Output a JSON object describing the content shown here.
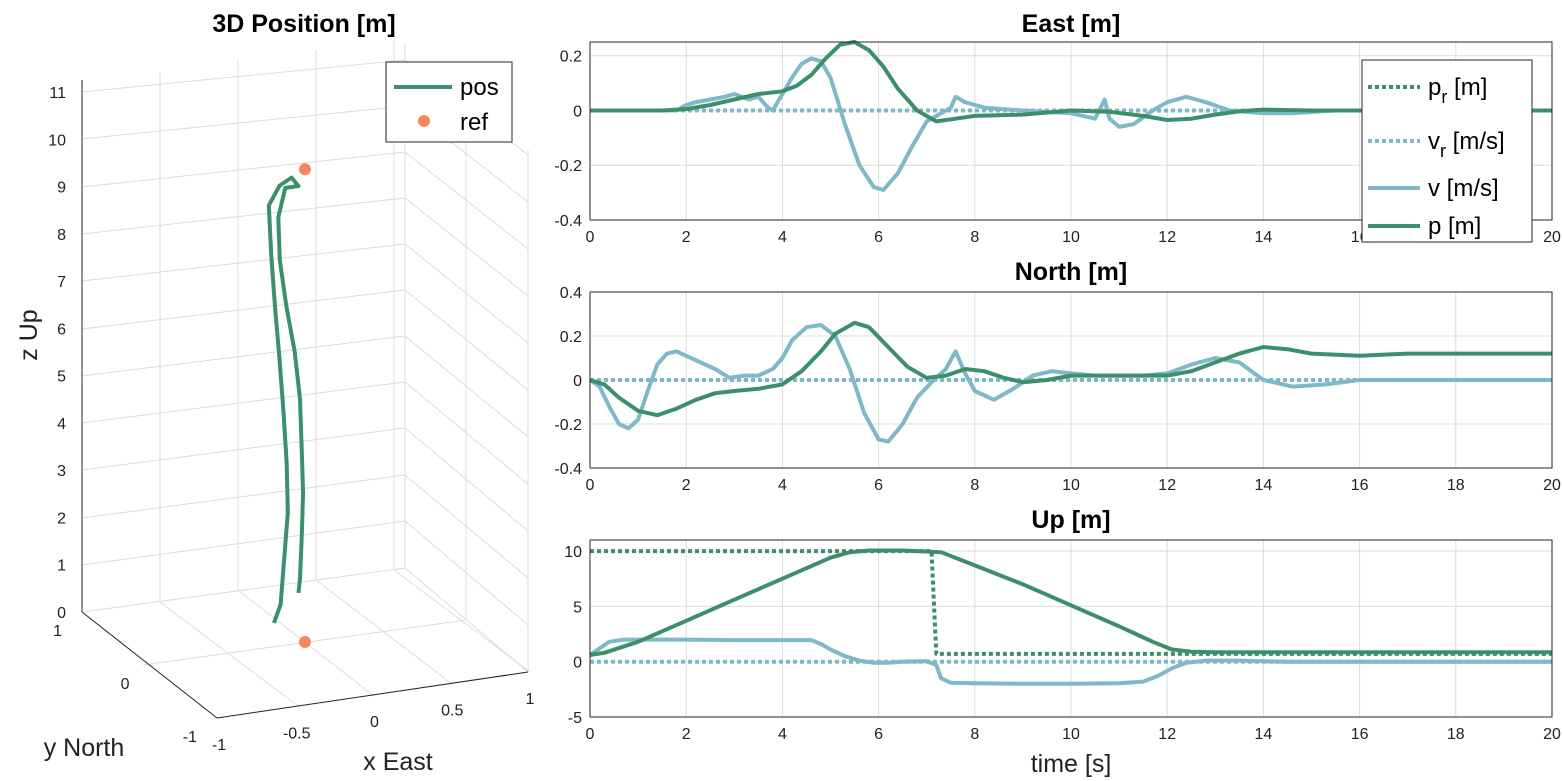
{
  "colors": {
    "p": "#3d8f6b",
    "v": "#7fb8c8",
    "ref": "#f5875f"
  },
  "chart_data": [
    {
      "id": "pos3d",
      "type": "line",
      "title": "3D Position [m]",
      "xlabel": "x East",
      "ylabel": "y North",
      "zlabel": "z Up",
      "xlim": [
        -1,
        1
      ],
      "ylim": [
        -1,
        1
      ],
      "zlim": [
        0,
        11
      ],
      "xticks": [
        "-1",
        "-0.5",
        "0",
        "0.5",
        "1"
      ],
      "yticks": [
        "-1",
        "0",
        "1"
      ],
      "zticks": [
        "0",
        "1",
        "2",
        "3",
        "4",
        "5",
        "6",
        "7",
        "8",
        "9",
        "10",
        "11"
      ],
      "grid": true,
      "legend": {
        "position": "top-right",
        "entries": [
          "pos",
          "ref"
        ]
      },
      "series": [
        {
          "name": "pos",
          "style": "solid",
          "x": [
            -0.2,
            -0.2,
            -0.19,
            -0.18,
            -0.17,
            -0.16,
            -0.15,
            -0.14,
            -0.13,
            -0.12,
            -0.12,
            -0.13,
            -0.15,
            -0.17,
            -0.15,
            -0.11,
            -0.06,
            -0.01,
            0.02,
            0.03,
            0.04,
            0.03,
            0.02,
            0.01
          ],
          "y": [
            0.0,
            -0.1,
            -0.13,
            -0.16,
            -0.12,
            -0.05,
            0.03,
            0.12,
            0.2,
            0.26,
            0.1,
            -0.1,
            -0.25,
            -0.1,
            0.05,
            0.12,
            0.14,
            0.13,
            0.12,
            0.12,
            0.12,
            0.12,
            0.12,
            0.12
          ],
          "z": [
            0.5,
            1.0,
            2.0,
            3.0,
            4.0,
            5.0,
            6.0,
            7.0,
            8.0,
            9.0,
            9.6,
            10.0,
            10.0,
            9.8,
            9.0,
            8.0,
            7.0,
            6.0,
            5.0,
            4.0,
            3.0,
            2.0,
            1.2,
            0.9
          ]
        },
        {
          "name": "ref",
          "style": "markers",
          "x": [
            0,
            0
          ],
          "y": [
            0,
            0
          ],
          "z": [
            0,
            10
          ]
        }
      ]
    },
    {
      "id": "east",
      "type": "line",
      "title": "East [m]",
      "xlabel": "",
      "ylabel": "",
      "xlim": [
        0,
        20
      ],
      "ylim": [
        -0.4,
        0.25
      ],
      "xticks": [
        "0",
        "2",
        "4",
        "6",
        "8",
        "10",
        "12",
        "14",
        "16",
        "18",
        "20"
      ],
      "yticks": [
        "-0.4",
        "-0.2",
        "0",
        "0.2"
      ],
      "ytick_values": [
        -0.4,
        -0.2,
        0,
        0.2
      ],
      "grid": true,
      "legend": {
        "position": "top-right",
        "entries": [
          "p_r [m]",
          "v_r [m/s]",
          "v [m/s]",
          "p [m]"
        ]
      },
      "series": [
        {
          "name": "p_r [m]",
          "style": "dotted-p",
          "x": [
            0,
            20
          ],
          "y": [
            0,
            0
          ]
        },
        {
          "name": "v_r [m/s]",
          "style": "dotted-v",
          "x": [
            0,
            20
          ],
          "y": [
            0,
            0
          ]
        },
        {
          "name": "v [m/s]",
          "style": "solid-v",
          "x": [
            0,
            1.8,
            2.0,
            2.2,
            2.5,
            2.8,
            3.0,
            3.3,
            3.5,
            3.7,
            3.8,
            4.0,
            4.2,
            4.4,
            4.6,
            4.8,
            5.0,
            5.3,
            5.6,
            5.9,
            6.1,
            6.4,
            6.7,
            7.0,
            7.3,
            7.5,
            7.6,
            7.8,
            8.2,
            9.0,
            10.0,
            10.5,
            10.7,
            10.8,
            11.0,
            11.3,
            11.7,
            12.0,
            12.4,
            12.8,
            13.3,
            14.0,
            14.6,
            15.5,
            16.5,
            18,
            20
          ],
          "y": [
            0,
            0,
            0.02,
            0.03,
            0.04,
            0.05,
            0.06,
            0.04,
            0.05,
            0.01,
            0.0,
            0.06,
            0.12,
            0.17,
            0.19,
            0.18,
            0.12,
            -0.05,
            -0.2,
            -0.28,
            -0.29,
            -0.23,
            -0.13,
            -0.04,
            -0.01,
            0.01,
            0.05,
            0.03,
            0.01,
            0.0,
            -0.01,
            -0.03,
            0.04,
            -0.03,
            -0.06,
            -0.05,
            0.0,
            0.03,
            0.05,
            0.03,
            0.0,
            -0.01,
            -0.01,
            0.0,
            0.0,
            0.0,
            0.0
          ]
        },
        {
          "name": "p [m]",
          "style": "solid-p",
          "x": [
            0,
            1.5,
            2.0,
            2.5,
            3.0,
            3.5,
            4.0,
            4.3,
            4.6,
            4.9,
            5.2,
            5.5,
            5.8,
            6.1,
            6.4,
            6.8,
            7.2,
            7.6,
            8.0,
            9.0,
            10.0,
            10.8,
            11.5,
            12.0,
            12.5,
            13.0,
            13.5,
            14.0,
            15.0,
            16.0,
            18,
            20
          ],
          "y": [
            0,
            0,
            0.005,
            0.02,
            0.04,
            0.06,
            0.07,
            0.09,
            0.13,
            0.19,
            0.24,
            0.25,
            0.22,
            0.16,
            0.08,
            0.0,
            -0.04,
            -0.03,
            -0.02,
            -0.015,
            0.0,
            -0.005,
            -0.02,
            -0.035,
            -0.03,
            -0.015,
            -0.003,
            0.003,
            0.0,
            0.0,
            0.0,
            0.0
          ]
        }
      ]
    },
    {
      "id": "north",
      "type": "line",
      "title": "North [m]",
      "xlabel": "",
      "ylabel": "",
      "xlim": [
        0,
        20
      ],
      "ylim": [
        -0.4,
        0.4
      ],
      "xticks": [
        "0",
        "2",
        "4",
        "6",
        "8",
        "10",
        "12",
        "14",
        "16",
        "18",
        "20"
      ],
      "yticks": [
        "-0.4",
        "-0.2",
        "0",
        "0.2",
        "0.4"
      ],
      "ytick_values": [
        -0.4,
        -0.2,
        0,
        0.2,
        0.4
      ],
      "grid": true,
      "series": [
        {
          "name": "v_r [m/s]",
          "style": "dotted-v",
          "x": [
            0,
            20
          ],
          "y": [
            0,
            0
          ]
        },
        {
          "name": "v [m/s]",
          "style": "solid-v",
          "x": [
            0,
            0.2,
            0.4,
            0.6,
            0.8,
            1.0,
            1.2,
            1.4,
            1.6,
            1.8,
            2.0,
            2.3,
            2.6,
            2.9,
            3.2,
            3.5,
            3.8,
            4.0,
            4.2,
            4.5,
            4.8,
            5.1,
            5.4,
            5.7,
            6.0,
            6.2,
            6.5,
            6.8,
            7.1,
            7.4,
            7.6,
            7.8,
            8.0,
            8.4,
            8.8,
            9.2,
            9.6,
            10.0,
            10.5,
            11.0,
            11.5,
            12.0,
            12.5,
            13.0,
            13.5,
            14.0,
            14.6,
            15.3,
            16.0,
            16.5,
            18,
            20
          ],
          "y": [
            0,
            -0.03,
            -0.12,
            -0.2,
            -0.22,
            -0.18,
            -0.05,
            0.07,
            0.12,
            0.13,
            0.11,
            0.08,
            0.05,
            0.01,
            0.02,
            0.02,
            0.05,
            0.1,
            0.18,
            0.24,
            0.25,
            0.2,
            0.05,
            -0.15,
            -0.27,
            -0.28,
            -0.2,
            -0.08,
            -0.01,
            0.05,
            0.13,
            0.03,
            -0.05,
            -0.09,
            -0.04,
            0.02,
            0.04,
            0.03,
            0.02,
            0.02,
            0.02,
            0.03,
            0.07,
            0.1,
            0.08,
            0.0,
            -0.03,
            -0.02,
            0.0,
            0.0,
            0.0,
            0.0
          ]
        },
        {
          "name": "p [m]",
          "style": "solid-p",
          "x": [
            0,
            0.3,
            0.6,
            1.0,
            1.4,
            1.8,
            2.2,
            2.6,
            3.0,
            3.5,
            4.0,
            4.4,
            4.8,
            5.1,
            5.5,
            5.8,
            6.2,
            6.6,
            7.0,
            7.4,
            7.8,
            8.2,
            8.6,
            9.0,
            9.5,
            10.0,
            11.0,
            12.0,
            12.5,
            13.0,
            13.5,
            14.0,
            14.5,
            15.0,
            16.0,
            17.0,
            18,
            20
          ],
          "y": [
            0,
            -0.02,
            -0.08,
            -0.14,
            -0.16,
            -0.13,
            -0.09,
            -0.06,
            -0.05,
            -0.04,
            -0.02,
            0.04,
            0.13,
            0.21,
            0.26,
            0.24,
            0.15,
            0.06,
            0.01,
            0.02,
            0.05,
            0.04,
            0.01,
            -0.01,
            0.0,
            0.02,
            0.02,
            0.02,
            0.04,
            0.08,
            0.12,
            0.15,
            0.14,
            0.12,
            0.11,
            0.12,
            0.12,
            0.12
          ]
        }
      ]
    },
    {
      "id": "up",
      "type": "line",
      "title": "Up [m]",
      "xlabel": "time [s]",
      "ylabel": "",
      "xlim": [
        0,
        20
      ],
      "ylim": [
        -5,
        11
      ],
      "xticks": [
        "0",
        "2",
        "4",
        "6",
        "8",
        "10",
        "12",
        "14",
        "16",
        "18",
        "20"
      ],
      "yticks": [
        "-5",
        "0",
        "5",
        "10"
      ],
      "ytick_values": [
        -5,
        0,
        5,
        10
      ],
      "grid": true,
      "series": [
        {
          "name": "p_r [m]",
          "style": "dotted-p",
          "x": [
            0,
            7.1,
            7.2,
            20
          ],
          "y": [
            10,
            10,
            0.7,
            0.7
          ]
        },
        {
          "name": "v_r [m/s]",
          "style": "dotted-v",
          "x": [
            0,
            20
          ],
          "y": [
            0,
            0
          ]
        },
        {
          "name": "v [m/s]",
          "style": "solid-v",
          "x": [
            0,
            0.2,
            0.4,
            0.7,
            1.0,
            2.0,
            3.0,
            4.0,
            4.6,
            4.8,
            5.0,
            5.3,
            5.6,
            5.9,
            6.2,
            6.5,
            7.0,
            7.2,
            7.3,
            7.5,
            8.0,
            9.0,
            10.0,
            11.0,
            11.5,
            11.8,
            12.1,
            12.4,
            12.8,
            13.5,
            14.5,
            16,
            18,
            20
          ],
          "y": [
            0.6,
            1.2,
            1.8,
            2.0,
            2.0,
            2.0,
            1.95,
            1.95,
            1.95,
            1.6,
            1.1,
            0.5,
            0.1,
            -0.1,
            -0.1,
            0.0,
            0.05,
            -0.3,
            -1.5,
            -1.9,
            -1.95,
            -2.0,
            -2.0,
            -1.95,
            -1.8,
            -1.3,
            -0.6,
            -0.1,
            0.1,
            0.1,
            0.0,
            0.0,
            0.0,
            0.0
          ]
        },
        {
          "name": "p [m]",
          "style": "solid-p",
          "x": [
            0,
            0.3,
            1.0,
            2.0,
            3.0,
            4.0,
            5.0,
            5.4,
            5.8,
            6.5,
            7.3,
            8.0,
            9.0,
            10.0,
            11.0,
            11.7,
            12.1,
            12.5,
            13.0,
            14,
            16,
            18,
            20
          ],
          "y": [
            0.6,
            0.8,
            1.8,
            3.7,
            5.6,
            7.5,
            9.4,
            9.9,
            10.05,
            10.05,
            9.9,
            8.7,
            7.0,
            5.1,
            3.2,
            1.8,
            1.1,
            0.9,
            0.85,
            0.85,
            0.85,
            0.85,
            0.85
          ]
        }
      ]
    }
  ]
}
